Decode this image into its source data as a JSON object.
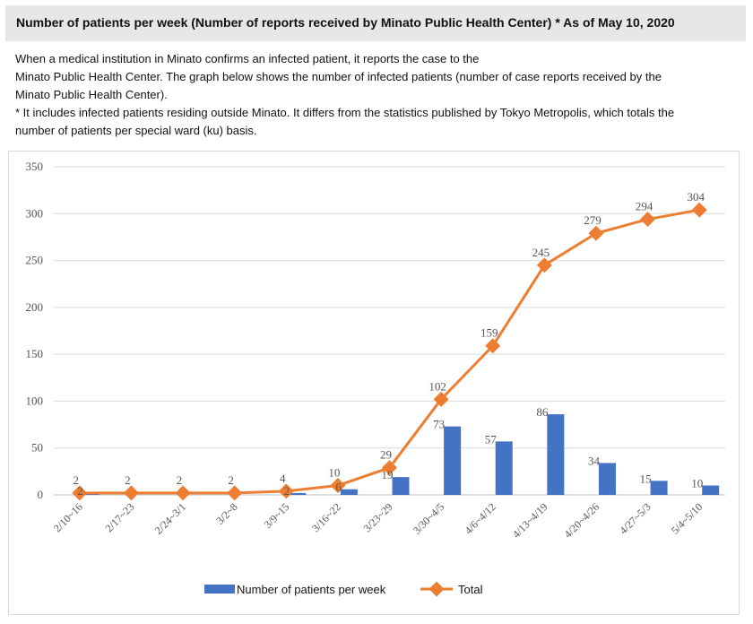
{
  "header": {
    "title": "Number of patients per week (Number of reports received by Minato Public Health Center) * As of May 10, 2020"
  },
  "description": {
    "lines": [
      "When a medical institution in Minato confirms an infected patient, it reports the case to the",
      "Minato Public Health Center. The graph below shows the number of infected patients (number of case reports received by the",
      "Minato Public Health Center).",
      "* It includes infected patients residing outside Minato. It differs from the statistics published by Tokyo Metropolis, which totals the",
      "number of patients per special ward (ku) basis."
    ]
  },
  "chart_data": {
    "type": "bar",
    "categories": [
      "2/10~16",
      "2/17~23",
      "2/24~3/1",
      "3/2~8",
      "3/9~15",
      "3/16~22",
      "3/23~29",
      "3/30~4/5",
      "4/6~4/12",
      "4/13~4/19",
      "4/20~4/26",
      "4/27~5/3",
      "5/4~5/10"
    ],
    "series": [
      {
        "name": "Number of patients per week",
        "kind": "bar",
        "color": "#4472c4",
        "values": [
          2,
          0,
          0,
          0,
          2,
          6,
          19,
          73,
          57,
          86,
          34,
          15,
          10
        ],
        "labels": [
          "2",
          "",
          "",
          "",
          "2",
          "6",
          "19",
          "73",
          "57",
          "86",
          "34",
          "15",
          "10"
        ]
      },
      {
        "name": "Total",
        "kind": "line",
        "color": "#ed7d31",
        "values": [
          2,
          2,
          2,
          2,
          4,
          10,
          29,
          102,
          159,
          245,
          279,
          294,
          304
        ],
        "labels": [
          "2",
          "2",
          "2",
          "2",
          "4",
          "10",
          "29",
          "102",
          "159",
          "245",
          "279",
          "294",
          "304"
        ]
      }
    ],
    "yticks": [
      "0",
      "50",
      "100",
      "150",
      "200",
      "250",
      "300",
      "350"
    ],
    "ylim": [
      0,
      350
    ],
    "grid": true,
    "legend": "bottom"
  }
}
